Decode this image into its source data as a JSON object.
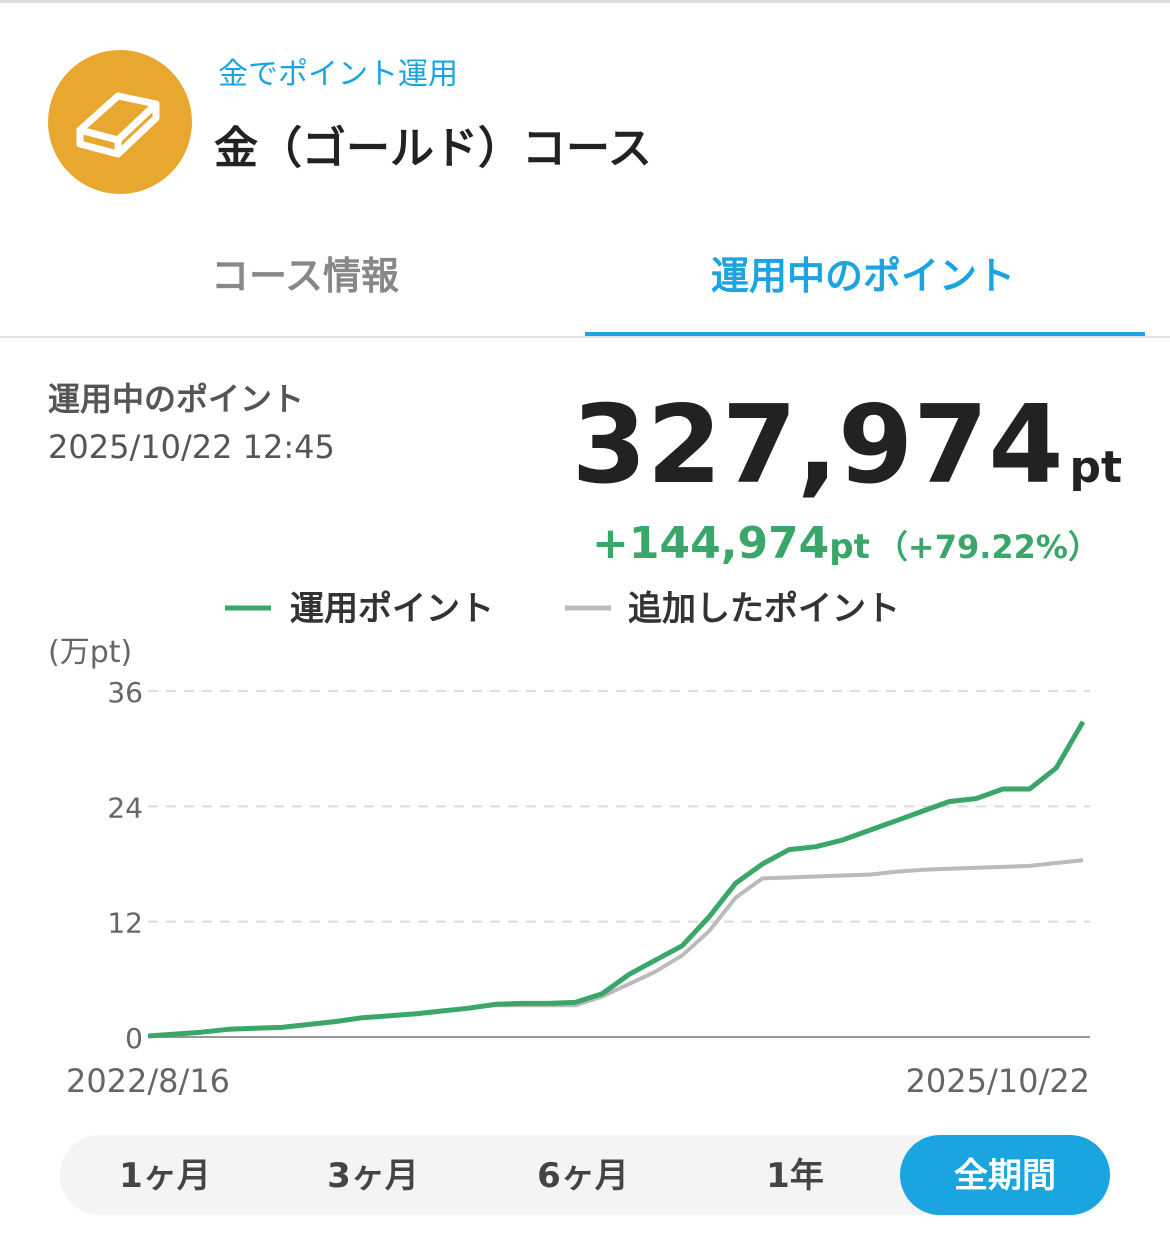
{
  "header": {
    "subtitle": "金でポイント運用",
    "title": "金（ゴールド）コース"
  },
  "tabs": {
    "items": [
      "コース情報",
      "運用中のポイント"
    ],
    "active": 1
  },
  "summary": {
    "label": "運用中のポイント",
    "datetime": "2025/10/22 12:45",
    "amount": "327,974",
    "unit": "pt",
    "change": "+144,974",
    "change_unit": "pt",
    "change_pct": "（+79.22%）"
  },
  "chart_data": {
    "type": "line",
    "y_label": "(万pt)",
    "categories": [
      "2022/8/16",
      null,
      null,
      null,
      null,
      null,
      null,
      null,
      null,
      null,
      null,
      null,
      null,
      null,
      null,
      null,
      null,
      null,
      null,
      null,
      null,
      null,
      null,
      null,
      null,
      null,
      null,
      null,
      null,
      null,
      null,
      null,
      null,
      null,
      null,
      "2025/10/22"
    ],
    "series": [
      {
        "name": "運用ポイント",
        "color": "#3aa66a",
        "values": [
          0.1,
          0.3,
          0.5,
          0.8,
          0.9,
          1.0,
          1.3,
          1.6,
          2.0,
          2.2,
          2.4,
          2.7,
          3.0,
          3.4,
          3.5,
          3.5,
          3.6,
          4.5,
          6.5,
          8.0,
          9.5,
          12.5,
          16.0,
          18.0,
          19.5,
          19.8,
          20.5,
          21.5,
          22.5,
          23.5,
          24.5,
          24.8,
          25.8,
          25.8,
          28.0,
          32.8
        ]
      },
      {
        "name": "追加したポイント",
        "color": "#bbbbbb",
        "values": [
          0.1,
          0.3,
          0.5,
          0.8,
          0.9,
          1.0,
          1.3,
          1.6,
          2.0,
          2.2,
          2.4,
          2.7,
          3.0,
          3.3,
          3.3,
          3.3,
          3.3,
          4.2,
          5.5,
          6.8,
          8.5,
          11.0,
          14.5,
          16.5,
          16.6,
          16.7,
          16.8,
          16.9,
          17.2,
          17.4,
          17.5,
          17.6,
          17.7,
          17.8,
          18.1,
          18.4
        ]
      }
    ],
    "ylim": [
      0,
      36
    ],
    "yticks": [
      0,
      12,
      24,
      36
    ],
    "grid": true
  },
  "periods": {
    "items": [
      "1ヶ月",
      "3ヶ月",
      "6ヶ月",
      "1年",
      "全期間"
    ],
    "active": 4
  }
}
